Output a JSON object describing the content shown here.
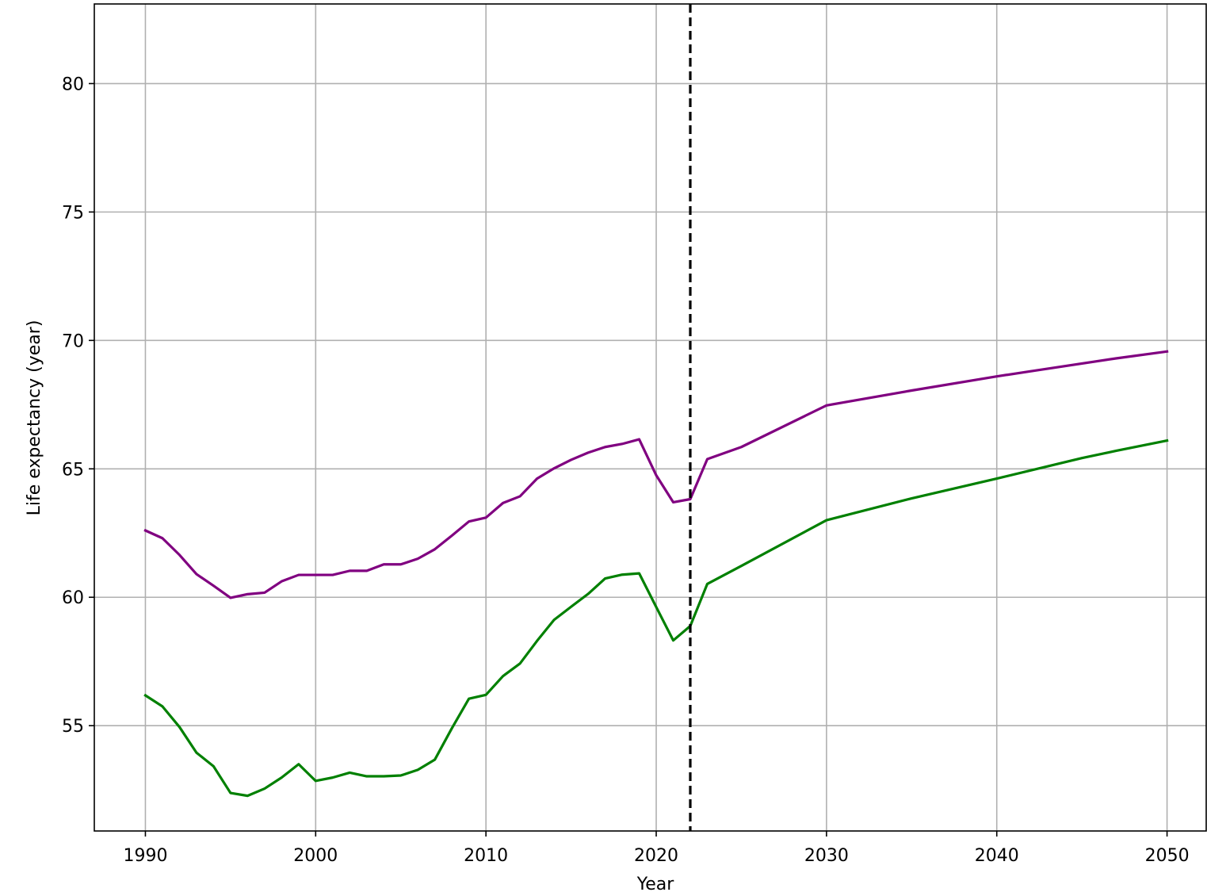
{
  "chart_data": {
    "type": "line",
    "title": "",
    "xlabel": "Year",
    "ylabel": "Life expectancy (year)",
    "xlim": [
      1987,
      2052.3
    ],
    "ylim": [
      50.9,
      83.1
    ],
    "xticks": [
      1990,
      2000,
      2010,
      2020,
      2030,
      2040,
      2050
    ],
    "yticks": [
      55,
      60,
      65,
      70,
      75,
      80
    ],
    "grid": true,
    "legend": "none",
    "reference_line": {
      "orientation": "vertical",
      "x": 2022,
      "style": "dashed",
      "color": "#000000"
    },
    "series": [
      {
        "color": "#800080",
        "x": [
          1990,
          1991,
          1992,
          1993,
          1994,
          1995,
          1996,
          1997,
          1998,
          1999,
          2000,
          2001,
          2002,
          2003,
          2004,
          2005,
          2006,
          2007,
          2008,
          2009,
          2010,
          2011,
          2012,
          2013,
          2014,
          2015,
          2016,
          2017,
          2018,
          2019,
          2020,
          2021,
          2022,
          2023,
          2025,
          2030,
          2035,
          2040,
          2042,
          2047,
          2050
        ],
        "values": [
          62.6,
          62.3,
          61.65,
          60.9,
          60.45,
          59.98,
          60.12,
          60.18,
          60.62,
          60.87,
          60.87,
          60.87,
          61.03,
          61.03,
          61.28,
          61.28,
          61.5,
          61.87,
          62.4,
          62.95,
          63.1,
          63.67,
          63.93,
          64.62,
          65.02,
          65.35,
          65.63,
          65.85,
          65.97,
          66.15,
          64.75,
          63.7,
          63.82,
          65.38,
          65.85,
          67.47,
          68.05,
          68.6,
          68.8,
          69.3,
          69.57
        ]
      },
      {
        "color": "#008000",
        "x": [
          1990,
          1991,
          1992,
          1993,
          1994,
          1995,
          1996,
          1997,
          1998,
          1999,
          2000,
          2001,
          2002,
          2003,
          2004,
          2005,
          2006,
          2007,
          2008,
          2009,
          2010,
          2011,
          2012,
          2013,
          2014,
          2015,
          2016,
          2017,
          2018,
          2019,
          2020,
          2021,
          2022,
          2023,
          2025,
          2030,
          2035,
          2040,
          2045,
          2047,
          2050
        ],
        "values": [
          56.18,
          55.75,
          54.95,
          53.95,
          53.42,
          52.38,
          52.27,
          52.55,
          52.98,
          53.5,
          52.85,
          52.98,
          53.17,
          53.03,
          53.03,
          53.06,
          53.28,
          53.68,
          54.9,
          56.05,
          56.2,
          56.93,
          57.42,
          58.3,
          59.12,
          59.63,
          60.13,
          60.73,
          60.88,
          60.93,
          59.62,
          58.32,
          58.88,
          60.52,
          61.22,
          63.0,
          63.85,
          64.62,
          65.42,
          65.7,
          66.1
        ]
      }
    ]
  }
}
